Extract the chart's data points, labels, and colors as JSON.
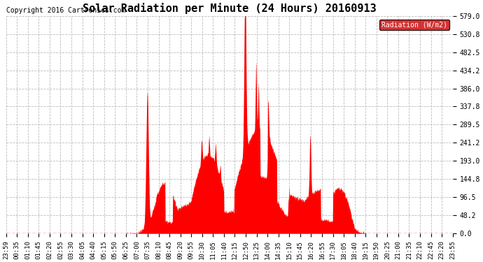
{
  "title": "Solar Radiation per Minute (24 Hours) 20160913",
  "copyright_text": "Copyright 2016 Cartronics.com",
  "legend_label": "Radiation (W/m2)",
  "yticks": [
    0.0,
    48.2,
    96.5,
    144.8,
    193.0,
    241.2,
    289.5,
    337.8,
    386.0,
    434.2,
    482.5,
    530.8,
    579.0
  ],
  "ymax": 579.0,
  "ymin": 0.0,
  "bg_color": "#ffffff",
  "plot_bg_color": "#ffffff",
  "fill_color": "#ff0000",
  "line_color": "#ff0000",
  "grid_color": "#bbbbbb",
  "title_fontsize": 11,
  "axis_fontsize": 7,
  "copyright_fontsize": 7,
  "legend_bg": "#cc0000",
  "legend_text_color": "#ffffff",
  "xtick_labels": [
    "23:59",
    "00:35",
    "01:10",
    "01:45",
    "02:20",
    "02:55",
    "03:30",
    "04:05",
    "04:40",
    "05:15",
    "05:50",
    "06:25",
    "07:00",
    "07:35",
    "08:10",
    "08:45",
    "09:20",
    "09:55",
    "10:30",
    "11:05",
    "11:40",
    "12:15",
    "12:50",
    "13:25",
    "14:00",
    "14:35",
    "15:10",
    "15:45",
    "16:20",
    "16:55",
    "17:30",
    "18:05",
    "18:40",
    "19:15",
    "19:50",
    "20:25",
    "21:00",
    "21:35",
    "22:10",
    "22:45",
    "23:20",
    "23:55"
  ]
}
